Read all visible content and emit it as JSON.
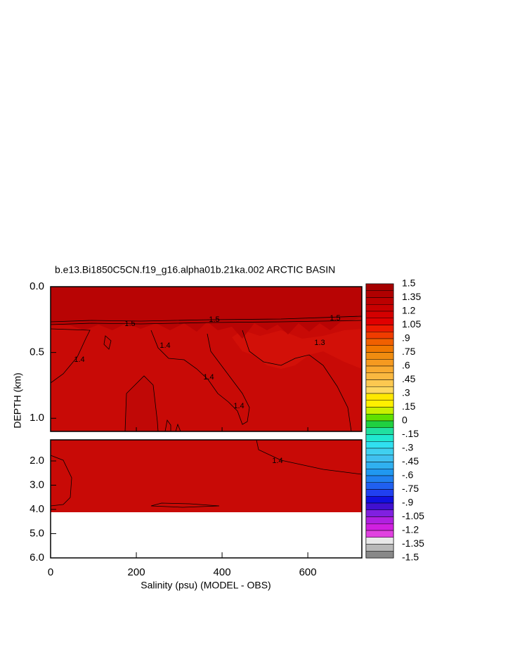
{
  "chart_data": {
    "type": "contour",
    "title": "b.e13.Bi1850C5CN.f19_g16.alpha01b.21ka.002 ARCTIC BASIN",
    "x_label": "Salinity (psu) (MODEL - OBS)",
    "y_label": "DEPTH (km)",
    "xlim": [
      0,
      726
    ],
    "xticks": [
      0,
      200,
      400,
      600
    ],
    "y_inverted": true,
    "panels": [
      {
        "ylim": [
          0,
          1.1
        ],
        "yticks": [
          {
            "value": 0,
            "label": "0.0"
          },
          {
            "value": 0.5,
            "label": "0.5"
          },
          {
            "value": 1,
            "label": "1.0"
          }
        ]
      },
      {
        "ylim": [
          1.13,
          6
        ],
        "yticks": [
          {
            "value": 2,
            "label": "2.0"
          },
          {
            "value": 3,
            "label": "3.0"
          },
          {
            "value": 4,
            "label": "4.0"
          },
          {
            "value": 5,
            "label": "5.0"
          },
          {
            "value": 6,
            "label": "6.0"
          }
        ]
      }
    ],
    "contour_labels": [
      "1.5",
      "1.5",
      "1.5",
      "1.4",
      "1.4",
      "1.4",
      "1.4",
      "1.3",
      "1.4"
    ],
    "colorbar": {
      "ticks": [
        1.5,
        1.35,
        1.2,
        1.05,
        {
          "value": 0.9,
          "label": ".9"
        },
        {
          "value": 0.75,
          "label": ".75"
        },
        {
          "value": 0.6,
          "label": ".6"
        },
        {
          "value": 0.45,
          "label": ".45"
        },
        {
          "value": 0.3,
          "label": ".3"
        },
        {
          "value": 0.15,
          "label": ".15"
        },
        0,
        {
          "value": -0.15,
          "label": "-.15"
        },
        {
          "value": -0.3,
          "label": "-.3"
        },
        {
          "value": -0.45,
          "label": "-.45"
        },
        {
          "value": -0.6,
          "label": "-.6"
        },
        {
          "value": -0.75,
          "label": "-.75"
        },
        {
          "value": -0.9,
          "label": "-.9"
        },
        -1.05,
        -1.2,
        -1.35,
        -1.5
      ],
      "colors": [
        "#a50000",
        "#b00000",
        "#bc0000",
        "#c80000",
        "#d40000",
        "#e00000",
        "#ec1a00",
        "#f03c00",
        "#f06000",
        "#f07800",
        "#f08c10",
        "#f59a20",
        "#f8aa30",
        "#fab840",
        "#fcc850",
        "#fdd860",
        "#ffe800",
        "#fff000",
        "#c8f000",
        "#60e000",
        "#20d040",
        "#20e0a0",
        "#20e8d0",
        "#30e0f0",
        "#40d0f0",
        "#40c0f0",
        "#30b0f0",
        "#2098f0",
        "#2080f0",
        "#2060f0",
        "#2040f0",
        "#1010e0",
        "#4010d0",
        "#8020e0",
        "#b020e0",
        "#d020e0",
        "#e040e0",
        "#e8e8e8",
        "#b8b8b8",
        "#888888"
      ]
    }
  }
}
